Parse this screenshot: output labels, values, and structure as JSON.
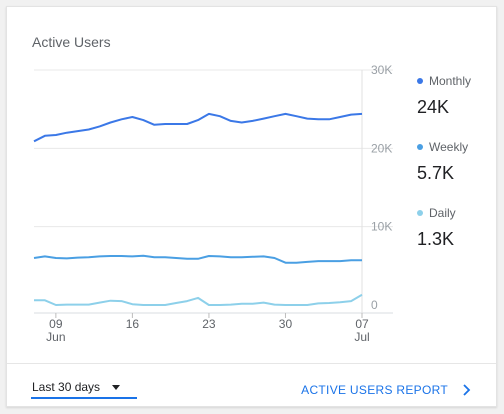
{
  "card": {
    "title": "Active Users"
  },
  "legend": [
    {
      "name": "Monthly",
      "value": "24K",
      "color": "#3b78e7"
    },
    {
      "name": "Weekly",
      "value": "5.7K",
      "color": "#4a9fe3"
    },
    {
      "name": "Daily",
      "value": "1.3K",
      "color": "#8dd0ea"
    }
  ],
  "footer": {
    "range_label": "Last 30 days",
    "report_label": "ACTIVE USERS REPORT"
  },
  "chart_data": {
    "type": "line",
    "xlabel": "",
    "ylabel": "",
    "ylim": [
      0,
      30000
    ],
    "grid": true,
    "y_ticks": [
      "0",
      "10K",
      "20K",
      "30K"
    ],
    "x_ticks": [
      {
        "day": "09",
        "month": "Jun"
      },
      {
        "day": "16",
        "month": ""
      },
      {
        "day": "23",
        "month": ""
      },
      {
        "day": "30",
        "month": ""
      },
      {
        "day": "07",
        "month": "Jul"
      }
    ],
    "x": [
      "Jun 07",
      "Jun 08",
      "Jun 09",
      "Jun 10",
      "Jun 11",
      "Jun 12",
      "Jun 13",
      "Jun 14",
      "Jun 15",
      "Jun 16",
      "Jun 17",
      "Jun 18",
      "Jun 19",
      "Jun 20",
      "Jun 21",
      "Jun 22",
      "Jun 23",
      "Jun 24",
      "Jun 25",
      "Jun 26",
      "Jun 27",
      "Jun 28",
      "Jun 29",
      "Jun 30",
      "Jul 01",
      "Jul 02",
      "Jul 03",
      "Jul 04",
      "Jul 05",
      "Jul 06",
      "Jul 07"
    ],
    "series": [
      {
        "name": "Monthly",
        "color": "#3b78e7",
        "values": [
          20900,
          21600,
          21700,
          22000,
          22200,
          22400,
          22800,
          23300,
          23700,
          24000,
          23600,
          23000,
          23100,
          23100,
          23100,
          23600,
          24400,
          24100,
          23500,
          23300,
          23500,
          23800,
          24100,
          24400,
          24100,
          23800,
          23700,
          23700,
          24000,
          24300,
          24400
        ]
      },
      {
        "name": "Weekly",
        "color": "#4a9fe3",
        "values": [
          6000,
          6200,
          6000,
          5950,
          6050,
          6100,
          6200,
          6250,
          6250,
          6200,
          6300,
          6100,
          6100,
          6000,
          5900,
          5900,
          6250,
          6200,
          6100,
          6100,
          6150,
          6200,
          6000,
          5400,
          5400,
          5500,
          5600,
          5600,
          5600,
          5700,
          5700
        ]
      },
      {
        "name": "Daily",
        "color": "#8dd0ea",
        "values": [
          600,
          600,
          0,
          50,
          50,
          50,
          300,
          550,
          500,
          100,
          0,
          0,
          0,
          250,
          500,
          900,
          0,
          0,
          50,
          150,
          150,
          300,
          50,
          0,
          0,
          0,
          200,
          250,
          350,
          500,
          1300
        ]
      }
    ]
  }
}
